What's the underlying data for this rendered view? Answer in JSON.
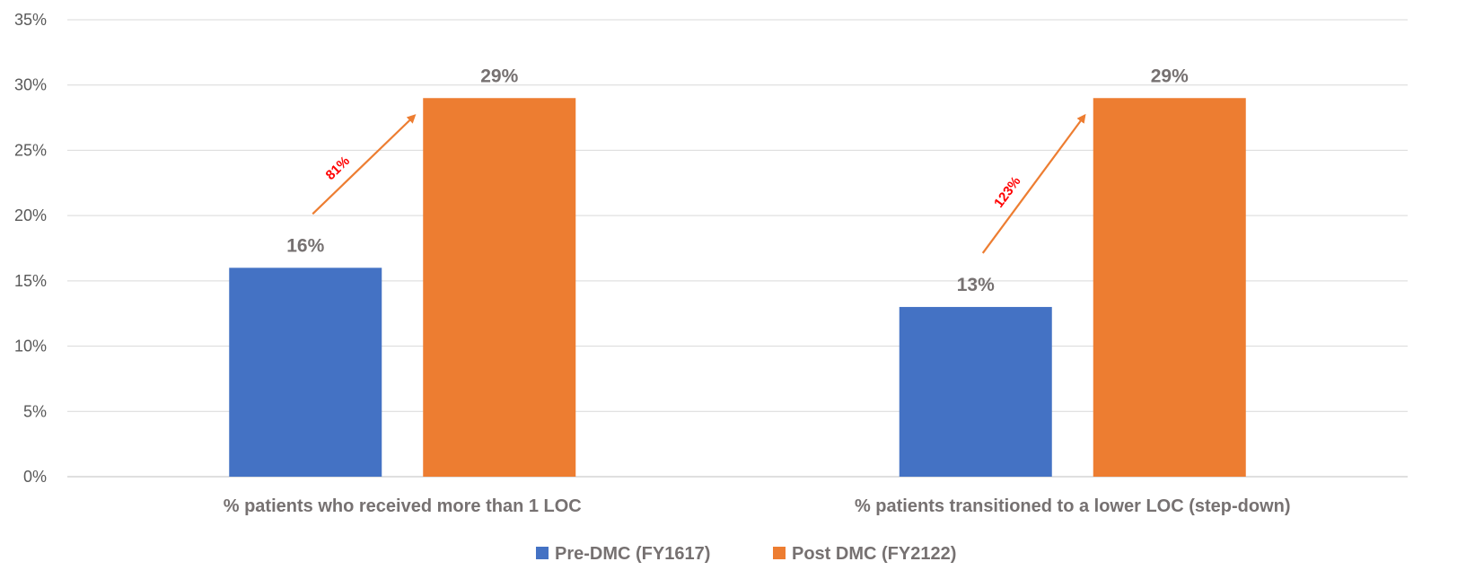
{
  "chart_data": {
    "type": "bar",
    "categories": [
      "% patients who received more than 1 LOC",
      "% patients transitioned to a lower LOC (step-down)"
    ],
    "series": [
      {
        "name": "Pre-DMC (FY1617)",
        "values": [
          16,
          13
        ],
        "labels": [
          "16%",
          "13%"
        ],
        "color": "#4472C4"
      },
      {
        "name": "Post DMC (FY2122)",
        "values": [
          29,
          29
        ],
        "labels": [
          "29%",
          "29%"
        ],
        "color": "#ED7D31"
      }
    ],
    "ylim": [
      0,
      35
    ],
    "yticks": [
      0,
      5,
      10,
      15,
      20,
      25,
      30,
      35
    ],
    "ytick_labels": [
      "0%",
      "5%",
      "10%",
      "15%",
      "20%",
      "25%",
      "30%",
      "35%"
    ],
    "grid": true,
    "legend_position": "bottom",
    "annotations": [
      {
        "category_index": 0,
        "text": "81%",
        "color": "#FF0000",
        "arrow_color": "#ED7D31"
      },
      {
        "category_index": 1,
        "text": "123%",
        "color": "#FF0000",
        "arrow_color": "#ED7D31"
      }
    ]
  }
}
